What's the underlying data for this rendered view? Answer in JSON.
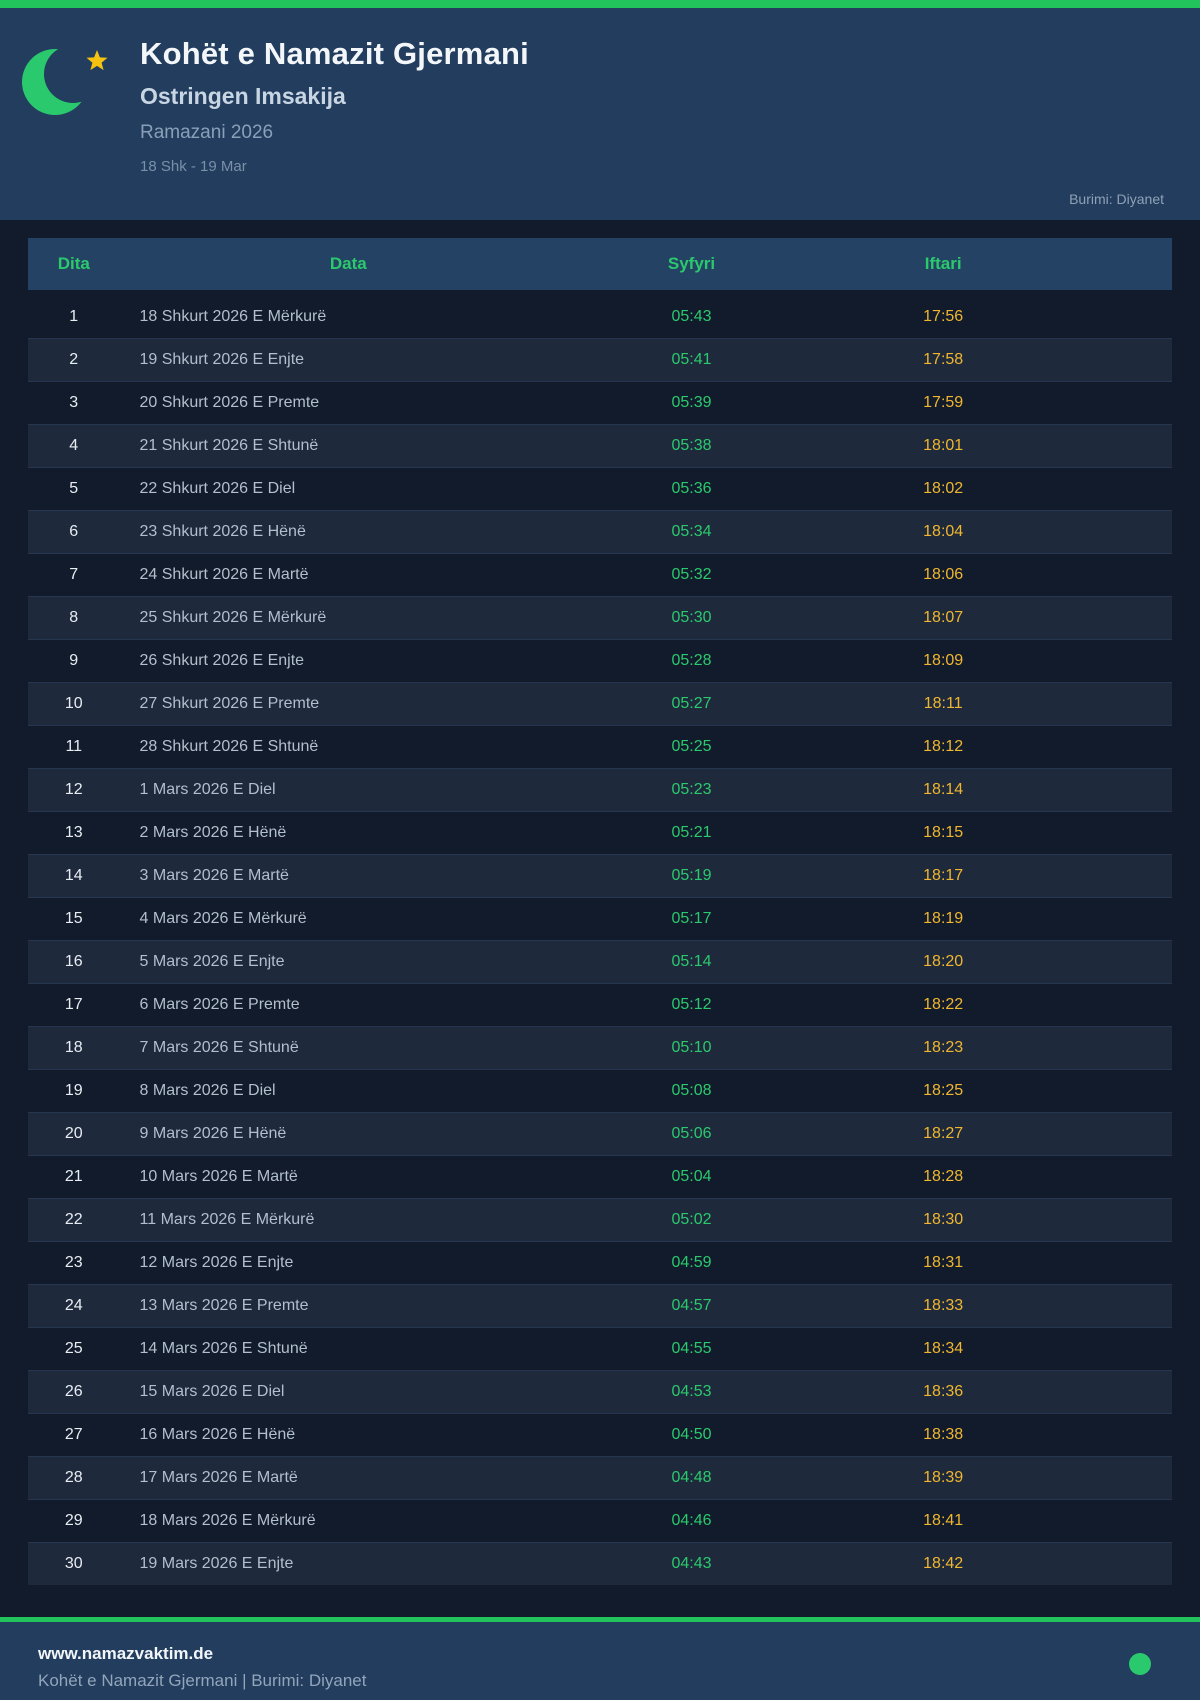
{
  "header": {
    "title": "Kohët e Namazit Gjermani",
    "subtitle": "Ostringen Imsakija",
    "season": "Ramazani 2026",
    "date_range": "18 Shk - 19 Mar",
    "source": "Burimi: Diyanet"
  },
  "table": {
    "columns": [
      "Dita",
      "Data",
      "Syfyri",
      "Iftari"
    ],
    "rows": [
      [
        "1",
        "18 Shkurt 2026 E Mërkurë",
        "05:43",
        "17:56"
      ],
      [
        "2",
        "19 Shkurt 2026 E Enjte",
        "05:41",
        "17:58"
      ],
      [
        "3",
        "20 Shkurt 2026 E Premte",
        "05:39",
        "17:59"
      ],
      [
        "4",
        "21 Shkurt 2026 E Shtunë",
        "05:38",
        "18:01"
      ],
      [
        "5",
        "22 Shkurt 2026 E Diel",
        "05:36",
        "18:02"
      ],
      [
        "6",
        "23 Shkurt 2026 E Hënë",
        "05:34",
        "18:04"
      ],
      [
        "7",
        "24 Shkurt 2026 E Martë",
        "05:32",
        "18:06"
      ],
      [
        "8",
        "25 Shkurt 2026 E Mërkurë",
        "05:30",
        "18:07"
      ],
      [
        "9",
        "26 Shkurt 2026 E Enjte",
        "05:28",
        "18:09"
      ],
      [
        "10",
        "27 Shkurt 2026 E Premte",
        "05:27",
        "18:11"
      ],
      [
        "11",
        "28 Shkurt 2026 E Shtunë",
        "05:25",
        "18:12"
      ],
      [
        "12",
        "1 Mars 2026 E Diel",
        "05:23",
        "18:14"
      ],
      [
        "13",
        "2 Mars 2026 E Hënë",
        "05:21",
        "18:15"
      ],
      [
        "14",
        "3 Mars 2026 E Martë",
        "05:19",
        "18:17"
      ],
      [
        "15",
        "4 Mars 2026 E Mërkurë",
        "05:17",
        "18:19"
      ],
      [
        "16",
        "5 Mars 2026 E Enjte",
        "05:14",
        "18:20"
      ],
      [
        "17",
        "6 Mars 2026 E Premte",
        "05:12",
        "18:22"
      ],
      [
        "18",
        "7 Mars 2026 E Shtunë",
        "05:10",
        "18:23"
      ],
      [
        "19",
        "8 Mars 2026 E Diel",
        "05:08",
        "18:25"
      ],
      [
        "20",
        "9 Mars 2026 E Hënë",
        "05:06",
        "18:27"
      ],
      [
        "21",
        "10 Mars 2026 E Martë",
        "05:04",
        "18:28"
      ],
      [
        "22",
        "11 Mars 2026 E Mërkurë",
        "05:02",
        "18:30"
      ],
      [
        "23",
        "12 Mars 2026 E Enjte",
        "04:59",
        "18:31"
      ],
      [
        "24",
        "13 Mars 2026 E Premte",
        "04:57",
        "18:33"
      ],
      [
        "25",
        "14 Mars 2026 E Shtunë",
        "04:55",
        "18:34"
      ],
      [
        "26",
        "15 Mars 2026 E Diel",
        "04:53",
        "18:36"
      ],
      [
        "27",
        "16 Mars 2026 E Hënë",
        "04:50",
        "18:38"
      ],
      [
        "28",
        "17 Mars 2026 E Martë",
        "04:48",
        "18:39"
      ],
      [
        "29",
        "18 Mars 2026 E Mërkurë",
        "04:46",
        "18:41"
      ],
      [
        "30",
        "19 Mars 2026 E Enjte",
        "04:43",
        "18:42"
      ]
    ]
  },
  "footer": {
    "website": "www.namazvaktim.de",
    "tagline": "Kohët e Namazit Gjermani | Burimi: Diyanet"
  },
  "colors": {
    "accent_green": "#22c35d",
    "text_green": "#2bc96d",
    "text_gold": "#f0b62f",
    "header_bg": "#223d5e",
    "page_bg": "#121b2b",
    "even_row_bg": "#1e2a3c",
    "thead_bg": "#244263",
    "star_gold": "#f5c211"
  },
  "icons": {
    "moon": "crescent-moon-icon",
    "star": "star-icon",
    "dot": "status-dot"
  }
}
